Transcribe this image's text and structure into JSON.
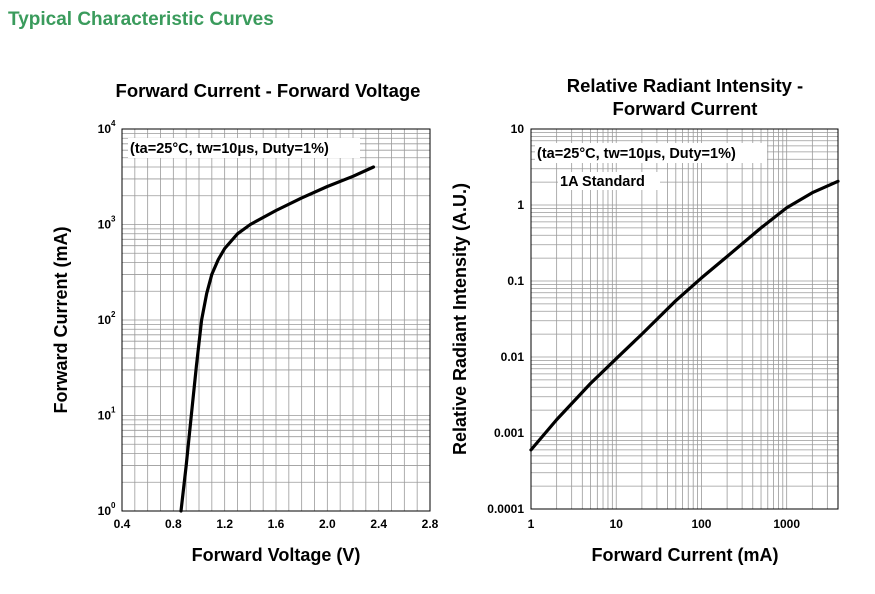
{
  "page": {
    "title": "Typical Characteristic Curves"
  },
  "chart_data": [
    {
      "type": "line",
      "title": "Forward Current - Forward Voltage",
      "xlabel": "Forward Voltage (V)",
      "ylabel": "Forward Current (mA)",
      "xlim": [
        0.4,
        2.8
      ],
      "ylim": [
        1,
        10000
      ],
      "yscale": "log",
      "grid": true,
      "x_ticks": [
        "0.4",
        "0.8",
        "1.2",
        "1.6",
        "2.0",
        "2.4",
        "2.8"
      ],
      "y_ticks": [
        {
          "base": "10",
          "exp": "0"
        },
        {
          "base": "10",
          "exp": "1"
        },
        {
          "base": "10",
          "exp": "2"
        },
        {
          "base": "10",
          "exp": "3"
        },
        {
          "base": "10",
          "exp": "4"
        }
      ],
      "annotations": [
        "(ta=25°C, tw=10μs, Duty=1%)"
      ],
      "series": [
        {
          "x": [
            0.86,
            0.9,
            0.94,
            0.98,
            1.02,
            1.06,
            1.1,
            1.15,
            1.2,
            1.3,
            1.4,
            1.6,
            1.8,
            2.0,
            2.2,
            2.36
          ],
          "y": [
            1,
            3,
            10,
            33,
            100,
            190,
            300,
            430,
            560,
            800,
            1000,
            1400,
            1900,
            2500,
            3200,
            4000
          ]
        }
      ]
    },
    {
      "type": "line",
      "title": "Relative Radiant Intensity - Forward Current",
      "title_lines": [
        "Relative Radiant Intensity -",
        "Forward Current"
      ],
      "xlabel": "Forward Current (mA)",
      "ylabel": "Relative Radiant Intensity (A.U.)",
      "xscale": "log",
      "yscale": "log",
      "xlim": [
        1,
        4000
      ],
      "ylim": [
        0.0001,
        10
      ],
      "grid": true,
      "x_ticks": [
        "1",
        "10",
        "100",
        "1000"
      ],
      "y_ticks": [
        "0.0001",
        "0.001",
        "0.01",
        "0.1",
        "1",
        "10"
      ],
      "annotations": [
        "(ta=25°C, tw=10μs, Duty=1%)",
        "1A Standard"
      ],
      "series": [
        {
          "x": [
            1,
            2,
            5,
            10,
            20,
            50,
            100,
            200,
            500,
            1000,
            2000,
            4000
          ],
          "y": [
            0.0006,
            0.0015,
            0.0045,
            0.0095,
            0.02,
            0.055,
            0.11,
            0.21,
            0.5,
            0.92,
            1.45,
            2.05
          ]
        }
      ]
    }
  ]
}
